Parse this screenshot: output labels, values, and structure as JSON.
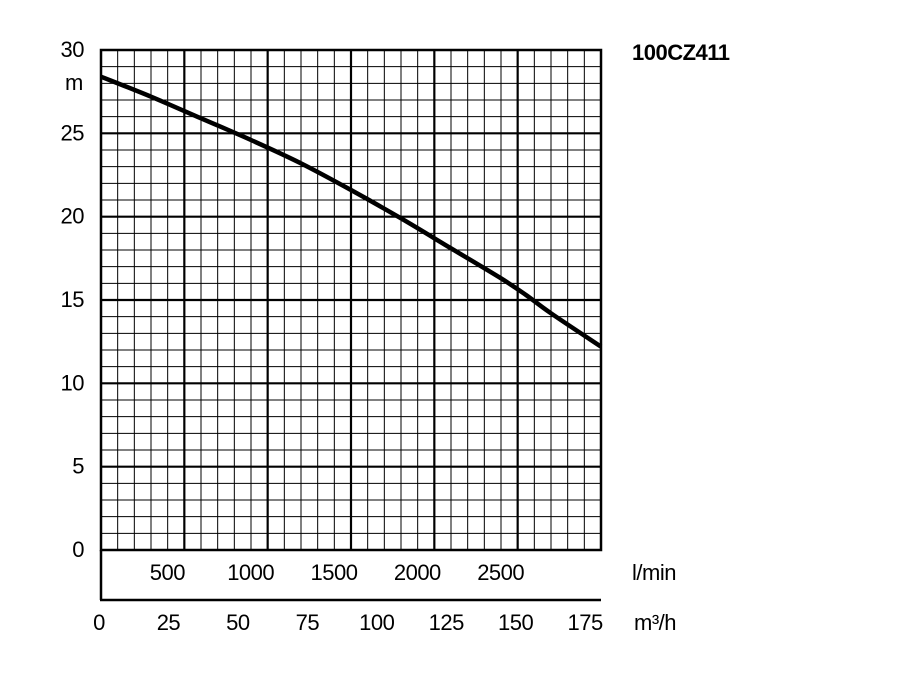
{
  "chart_data": {
    "type": "line",
    "title": "100CZ411",
    "ylabel": "m",
    "xlabel_primary": "l/min",
    "xlabel_secondary": "m³/h",
    "ylim": [
      0,
      30
    ],
    "xlim_m3h": [
      0,
      180
    ],
    "xlim_lmin": [
      0,
      3000
    ],
    "y_ticks": [
      "0",
      "5",
      "10",
      "15",
      "20",
      "25",
      "30"
    ],
    "y_tick_values": [
      0,
      5,
      10,
      15,
      20,
      25,
      30
    ],
    "x_ticks_lmin": [
      "500",
      "1000",
      "1500",
      "2000",
      "2500"
    ],
    "x_tick_values_lmin": [
      500,
      1000,
      1500,
      2000,
      2500
    ],
    "x_ticks_m3h": [
      "0",
      "25",
      "50",
      "75",
      "100",
      "125",
      "150",
      "175"
    ],
    "x_tick_values_m3h": [
      0,
      25,
      50,
      75,
      100,
      125,
      150,
      175
    ],
    "grid": true,
    "series": [
      {
        "x": [
          0,
          300,
          600,
          900,
          1200,
          1500,
          1800,
          2100,
          2400,
          2550,
          2700,
          3000
        ],
        "y": [
          28.4,
          27.2,
          25.9,
          24.6,
          23.2,
          21.6,
          19.9,
          18.1,
          16.3,
          15.3,
          14.2,
          12.2
        ]
      }
    ]
  }
}
